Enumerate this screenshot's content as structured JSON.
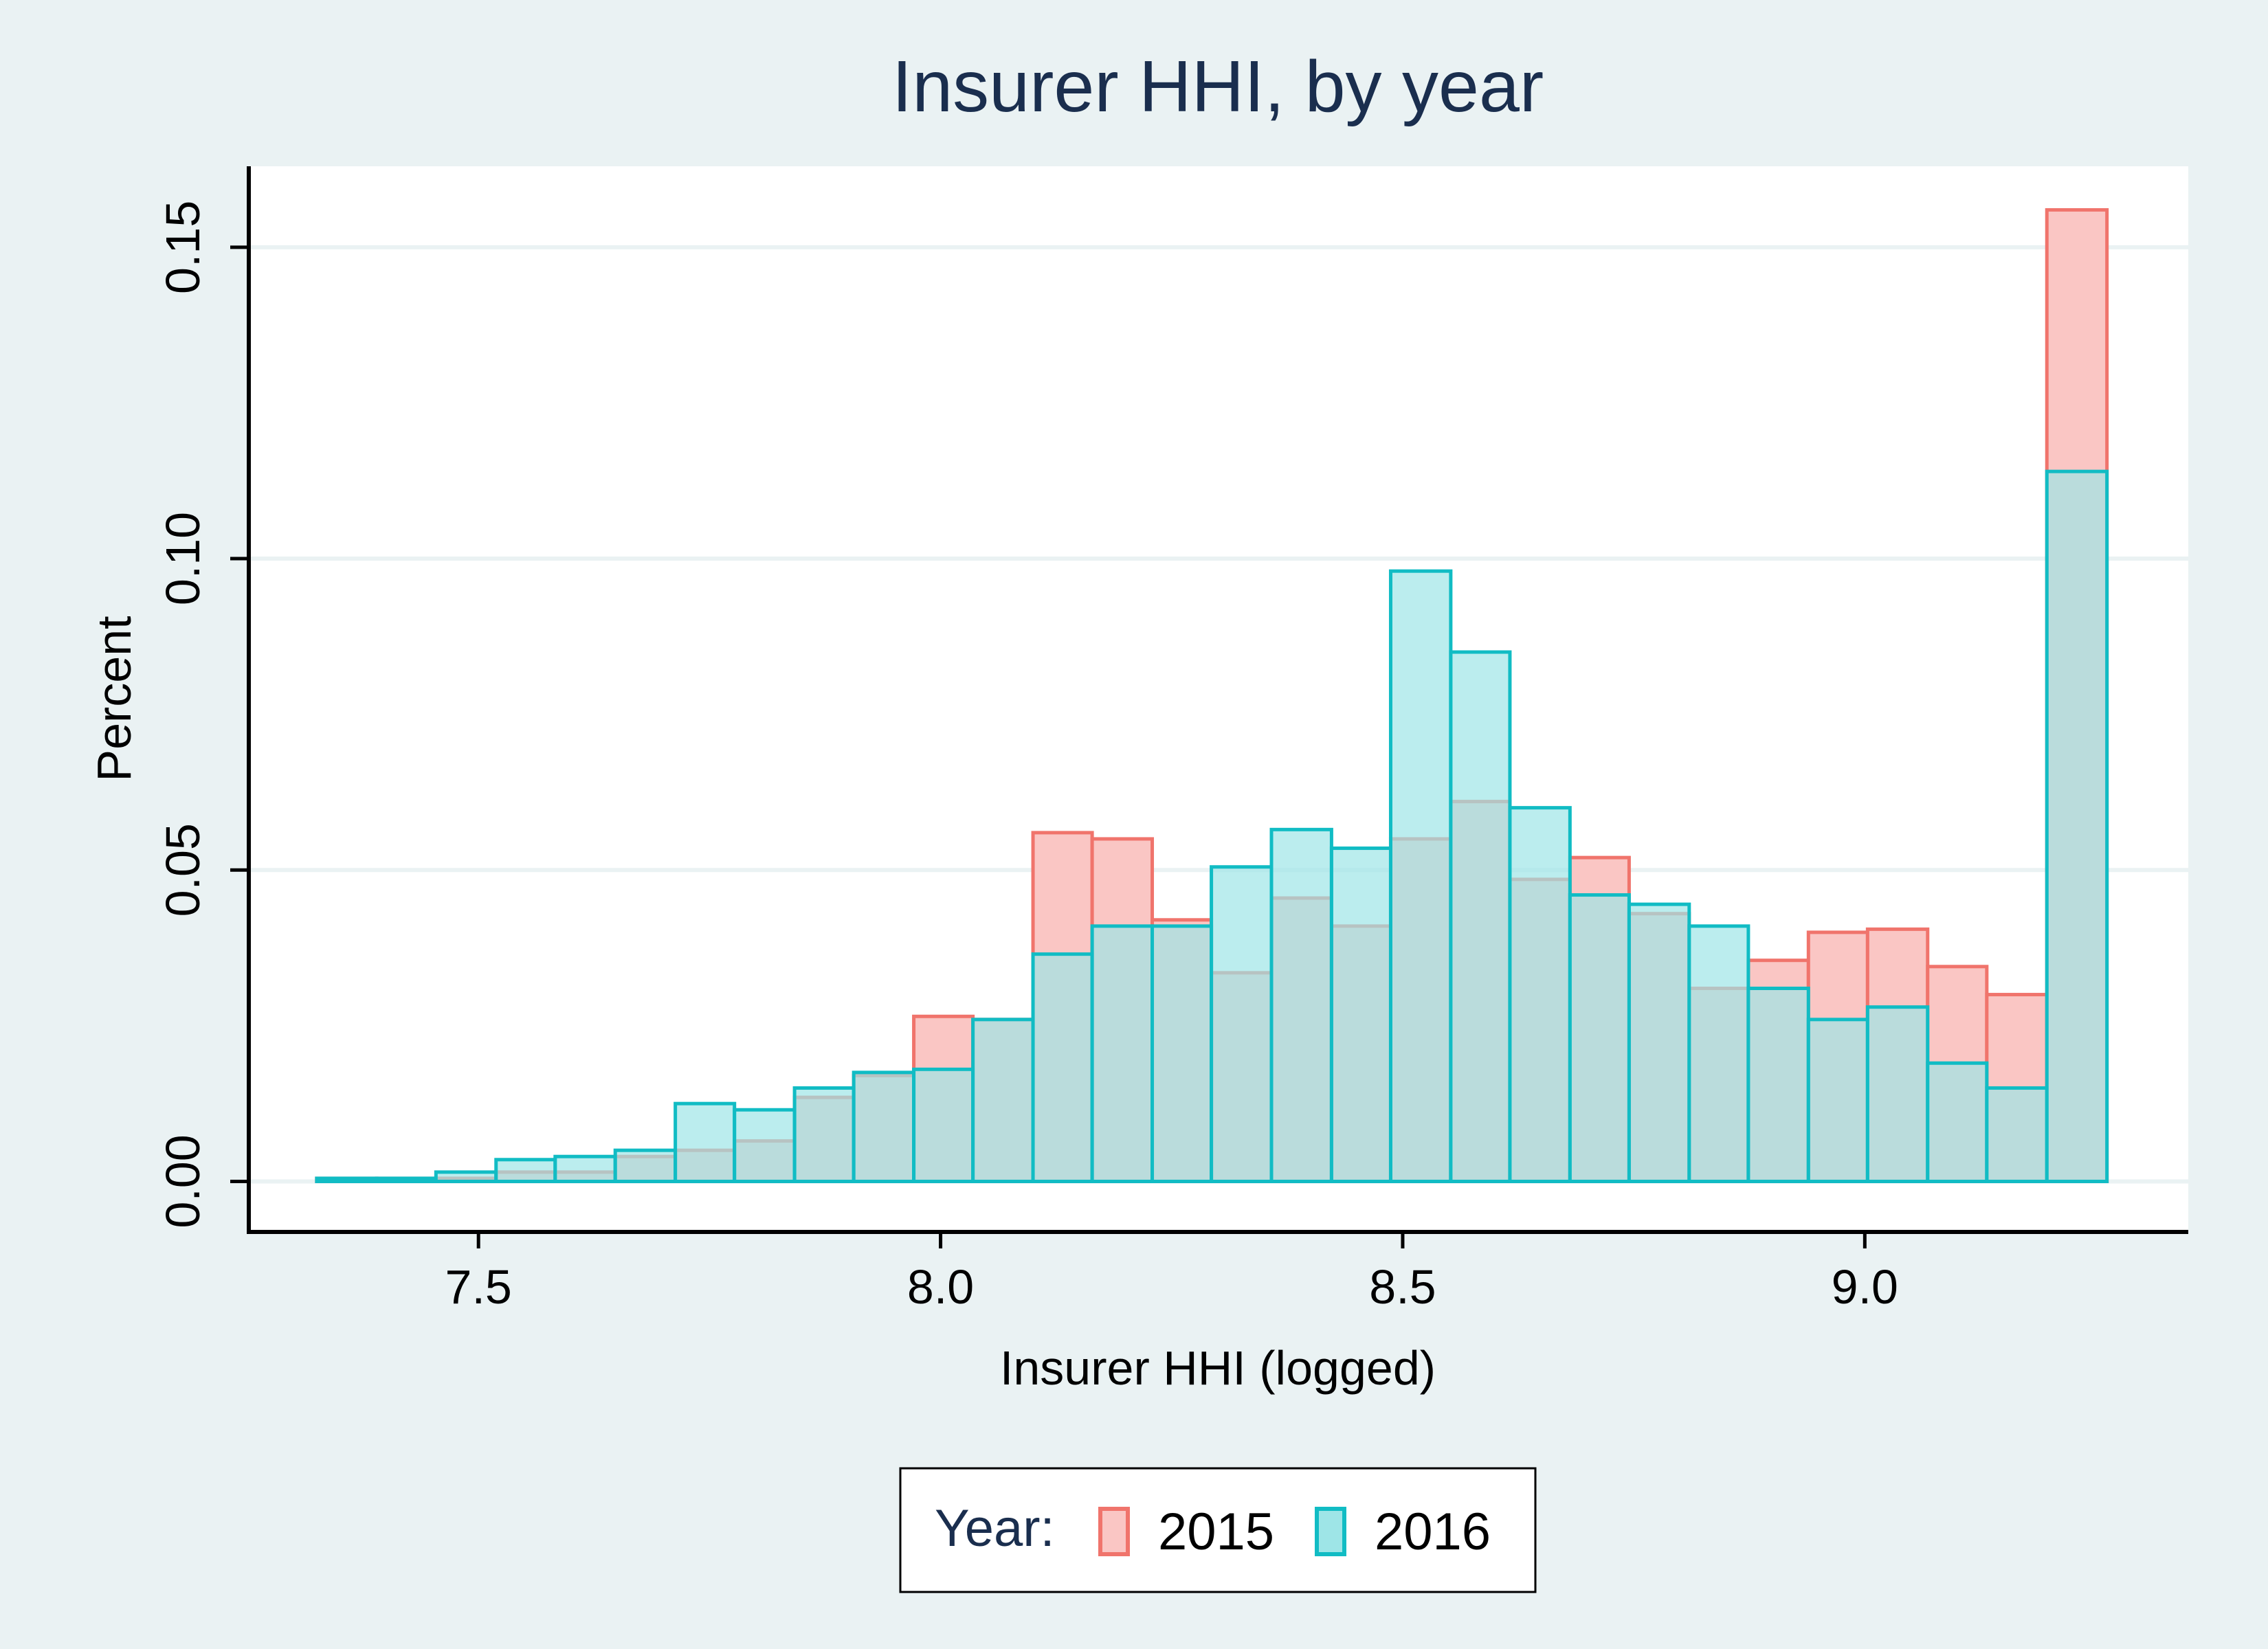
{
  "chart_data": {
    "type": "bar",
    "title": "Insurer HHI, by year",
    "xlabel": "Insurer HHI (logged)",
    "ylabel": "Percent",
    "xlim": [
      7.25,
      9.35
    ],
    "ylim": [
      -0.008,
      0.163
    ],
    "x_ticks": [
      7.5,
      8.0,
      8.5,
      9.0
    ],
    "x_tick_labels": [
      "7.5",
      "8.0",
      "8.5",
      "9.0"
    ],
    "y_ticks": [
      0.0,
      0.05,
      0.1,
      0.15
    ],
    "y_tick_labels": [
      "0.00",
      "0.05",
      "0.10",
      "0.15"
    ],
    "grid": true,
    "legend_position": "bottom",
    "legend_title": "Year:",
    "bin_edges": [
      7.325,
      7.39,
      7.454,
      7.519,
      7.583,
      7.648,
      7.713,
      7.777,
      7.842,
      7.906,
      7.971,
      8.035,
      8.1,
      8.164,
      8.229,
      8.293,
      8.358,
      8.423,
      8.487,
      8.552,
      8.616,
      8.681,
      8.745,
      8.81,
      8.874,
      8.939,
      9.003,
      9.068,
      9.132,
      9.197,
      9.262
    ],
    "series": [
      {
        "name": "2015",
        "fill": "#fac6c4",
        "edge": "#f0746c",
        "values": [
          0.0005,
          0.0005,
          0.0005,
          0.0015,
          0.0015,
          0.004,
          0.005,
          0.0065,
          0.0135,
          0.017,
          0.0265,
          0.026,
          0.056,
          0.055,
          0.042,
          0.0335,
          0.0455,
          0.041,
          0.055,
          0.061,
          0.0485,
          0.052,
          0.043,
          0.031,
          0.0355,
          0.04,
          0.0405,
          0.0345,
          0.03,
          0.156
        ]
      },
      {
        "name": "2016",
        "fill": "#9ee5e7",
        "edge": "#11bcc4",
        "values": [
          0.0005,
          0.0005,
          0.0015,
          0.0035,
          0.004,
          0.005,
          0.0125,
          0.0115,
          0.015,
          0.0175,
          0.018,
          0.026,
          0.0365,
          0.041,
          0.041,
          0.0505,
          0.0565,
          0.0535,
          0.098,
          0.085,
          0.06,
          0.046,
          0.0445,
          0.041,
          0.031,
          0.026,
          0.028,
          0.019,
          0.015,
          0.114
        ]
      }
    ]
  }
}
